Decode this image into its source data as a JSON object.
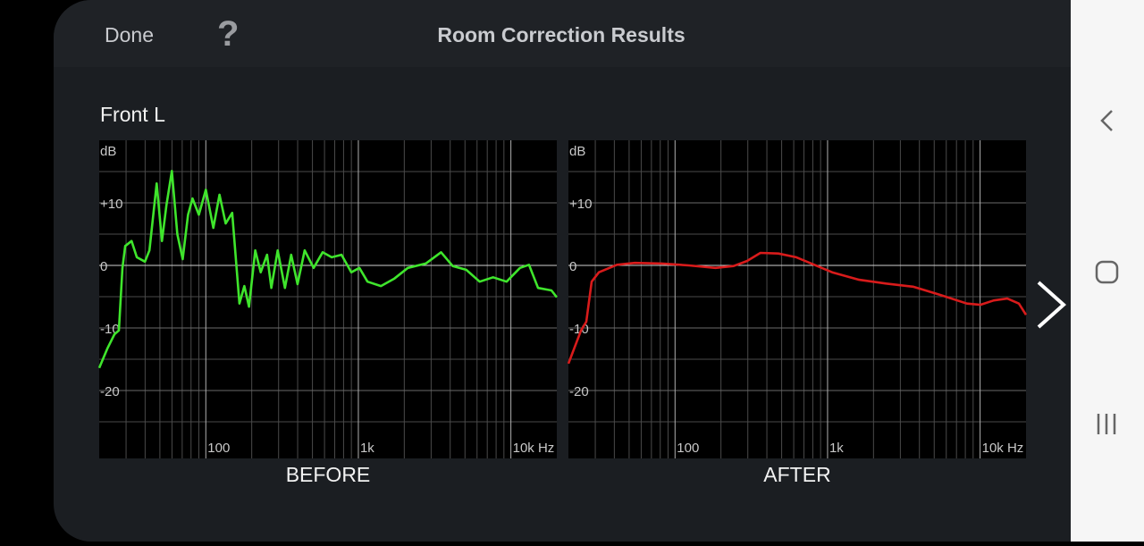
{
  "header": {
    "done": "Done",
    "help": "?",
    "title": "Room Correction Results"
  },
  "channel": "Front L",
  "chart_data": [
    {
      "type": "line",
      "caption": "BEFORE",
      "ylabel": "dB",
      "log_x": true,
      "xlim": [
        20,
        20000
      ],
      "xticks": [
        {
          "value": 100,
          "label": "100"
        },
        {
          "value": 1000,
          "label": "1k"
        },
        {
          "value": 10000,
          "label": "10k Hz"
        }
      ],
      "xminorticks": [
        30,
        40,
        50,
        60,
        70,
        80,
        90,
        200,
        300,
        400,
        500,
        600,
        700,
        800,
        900,
        2000,
        3000,
        4000,
        5000,
        6000,
        7000,
        8000,
        9000
      ],
      "ylim": [
        -30,
        20
      ],
      "yticks": [
        {
          "value": 10,
          "label": "+10"
        },
        0,
        -10,
        -20
      ],
      "yminorticks": [
        15,
        5,
        -5,
        -15,
        -25
      ],
      "x": [
        20,
        22.6,
        25.2,
        26.9,
        28.4,
        29.6,
        32.6,
        35.3,
        39.9,
        42.7,
        47.6,
        51.6,
        55.2,
        59.9,
        65,
        70.5,
        76.5,
        81.8,
        90,
        100,
        112,
        123,
        135,
        149,
        166,
        179,
        192,
        211,
        229,
        252,
        269,
        296,
        330,
        363,
        399,
        445,
        509,
        583,
        668,
        775,
        900,
        1016,
        1148,
        1406,
        1723,
        2111,
        2769,
        3486,
        4155,
        5092,
        6239,
        7645,
        9366,
        11475,
        13146,
        15060,
        18450,
        20000
      ],
      "series": [
        {
          "color": "#3fe52c",
          "values": [
            -16.4,
            -13.3,
            -11,
            -10.4,
            -0.4,
            3.1,
            3.9,
            1.3,
            0.6,
            2.4,
            13.1,
            3.9,
            9.6,
            15.1,
            5,
            1,
            8.1,
            10.7,
            8.1,
            12.1,
            6,
            11.3,
            6.7,
            8.4,
            -6.1,
            -3.3,
            -6.6,
            2.4,
            -1.1,
            1.7,
            -3.6,
            2.4,
            -3.6,
            1.7,
            -3,
            2.4,
            -0.4,
            2.1,
            1.3,
            1.7,
            -1.1,
            -0.4,
            -2.6,
            -3.3,
            -2.1,
            -0.4,
            0.3,
            2.1,
            -0.1,
            -0.7,
            -2.6,
            -1.9,
            -2.6,
            -0.4,
            0.1,
            -3.6,
            -4,
            -5.1
          ]
        }
      ]
    },
    {
      "type": "line",
      "caption": "AFTER",
      "ylabel": "dB",
      "log_x": true,
      "xlim": [
        20,
        20000
      ],
      "xticks": [
        {
          "value": 100,
          "label": "100"
        },
        {
          "value": 1000,
          "label": "1k"
        },
        {
          "value": 10000,
          "label": "10k Hz"
        }
      ],
      "xminorticks": [
        30,
        40,
        50,
        60,
        70,
        80,
        90,
        200,
        300,
        400,
        500,
        600,
        700,
        800,
        900,
        2000,
        3000,
        4000,
        5000,
        6000,
        7000,
        8000,
        9000
      ],
      "ylim": [
        -30,
        20
      ],
      "yticks": [
        {
          "value": 10,
          "label": "+10"
        },
        0,
        -10,
        -20
      ],
      "yminorticks": [
        15,
        5,
        -5,
        -15,
        -25
      ],
      "x": [
        20,
        24.2,
        26.2,
        28.4,
        31.7,
        41.6,
        54.5,
        81.8,
        123,
        184,
        242,
        296,
        363,
        476,
        624,
        818,
        1072,
        1611,
        2418,
        3630,
        5450,
        8183,
        10025,
        12282,
        15060,
        17950,
        20000
      ],
      "series": [
        {
          "color": "#d81b1b",
          "values": [
            -15.7,
            -10.4,
            -9,
            -2.6,
            -1.1,
            0.1,
            0.4,
            0.3,
            0,
            -0.4,
            -0.1,
            0.7,
            2,
            1.9,
            1.3,
            0.1,
            -1.1,
            -2.3,
            -2.9,
            -3.4,
            -4.7,
            -6.1,
            -6.3,
            -5.6,
            -5.3,
            -6.1,
            -7.9
          ]
        }
      ]
    }
  ]
}
